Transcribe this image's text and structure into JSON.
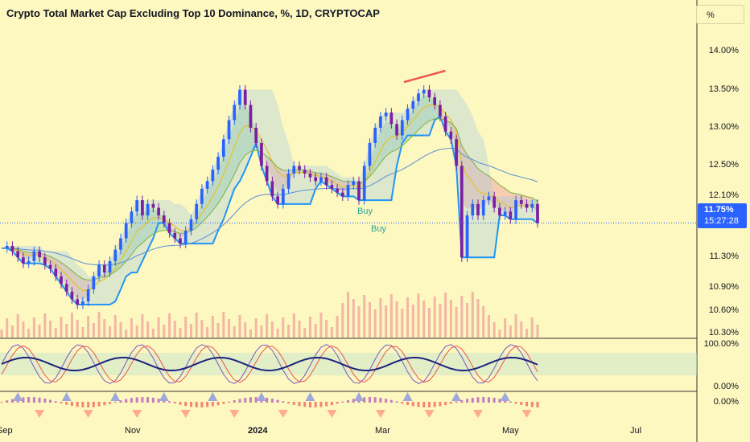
{
  "header": {
    "title": "Crypto Total Market Cap Excluding Top 10 Dominance, %, 1D, CRYPTOCAP",
    "unit_button": "%"
  },
  "price_badge": {
    "value": "11.75%",
    "countdown": "15:27:28"
  },
  "signals": [
    "Buy",
    "Buy"
  ],
  "colors": {
    "background": "#fdf7c0",
    "candle_up": "#2962ff",
    "candle_down": "#7b1fa2",
    "price_line": "#2962ff",
    "trend_line": "#ef5350",
    "cloud_bull": "#a5d6a7",
    "cloud_bear": "#f4a9a0",
    "kumo": "#9ec9e2",
    "volume": "#ef9a9a",
    "stoch_k": "#7e57c2",
    "stoch_d": "#ef5350",
    "stoch_line": "#1a237e"
  },
  "chart_data": {
    "type": "line",
    "title": "Crypto Total Market Cap Excluding Top 10 Dominance, %, 1D, CRYPTOCAP",
    "y_unit": "%",
    "y_ticks": [
      "14.00%",
      "13.50%",
      "13.00%",
      "12.50%",
      "12.10%",
      "11.30%",
      "10.90%",
      "10.60%",
      "10.30%"
    ],
    "x_ticks": [
      "Sep",
      "Nov",
      "2024",
      "Mar",
      "May",
      "Jul"
    ],
    "ylim": [
      10.3,
      14.15
    ],
    "grid": false,
    "last_value": 11.75,
    "series": [
      {
        "values": [
          11.42,
          11.45,
          11.38,
          11.3,
          11.22,
          11.25,
          11.38,
          11.3,
          11.2,
          11.15,
          11.05,
          10.95,
          10.85,
          10.75,
          10.68,
          10.72,
          10.88,
          11.05,
          11.2,
          11.1,
          11.25,
          11.4,
          11.55,
          11.75,
          11.9,
          12.05,
          11.85,
          12.0,
          11.95,
          11.85,
          11.75,
          11.62,
          11.55,
          11.48,
          11.65,
          11.8,
          12.0,
          12.2,
          12.3,
          12.45,
          12.62,
          12.85,
          13.1,
          13.3,
          13.5,
          13.3,
          13.0,
          12.8,
          12.5,
          12.3,
          12.1,
          12.0,
          12.2,
          12.4,
          12.5,
          12.45,
          12.4,
          12.35,
          12.3,
          12.35,
          12.25,
          12.2,
          12.15,
          12.1,
          12.25,
          12.3,
          12.05,
          12.5,
          12.8,
          13.0,
          13.15,
          13.2,
          13.05,
          12.9,
          13.1,
          13.25,
          13.35,
          13.45,
          13.5,
          13.4,
          13.3,
          13.15,
          12.95,
          12.85,
          12.5,
          11.3,
          11.85,
          12.0,
          11.85,
          12.05,
          12.1,
          11.95,
          11.85,
          11.9,
          11.8,
          12.05,
          12.0,
          11.95,
          12.0,
          11.75
        ]
      }
    ],
    "annotations": [
      "Buy",
      "Buy"
    ],
    "indicators": {
      "oscillator_axis": [
        "100.00%",
        "0.00%"
      ],
      "momentum_axis": [
        "0.00%"
      ]
    }
  }
}
